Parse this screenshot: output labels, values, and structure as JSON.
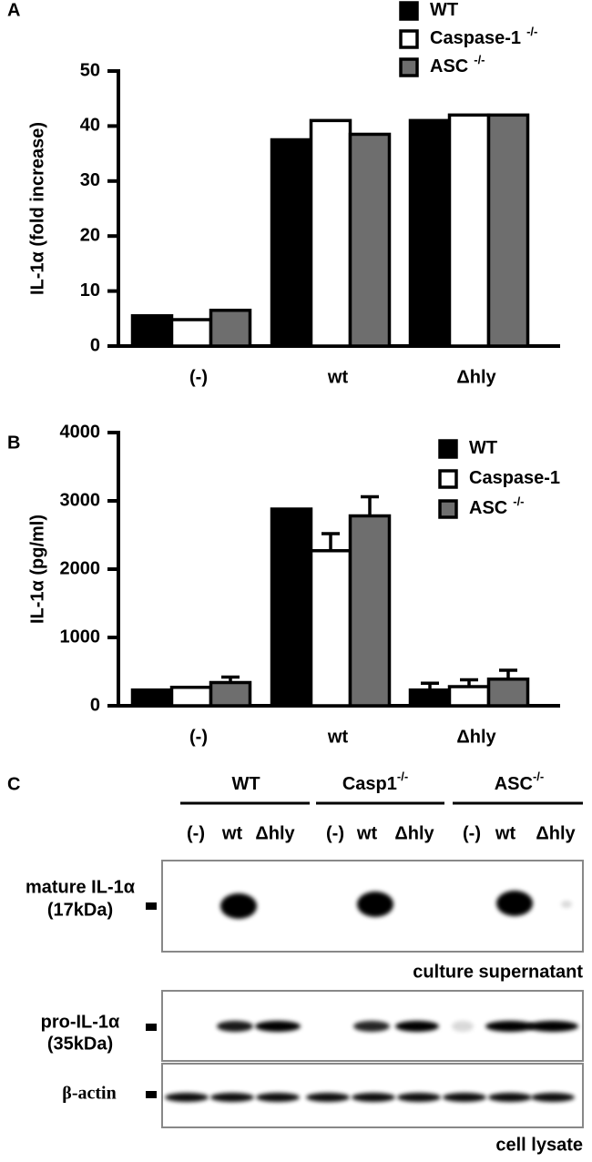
{
  "chart_data": [
    {
      "type": "bar",
      "panel": "A",
      "ylabel": "IL-1α  (fold increase)",
      "categories": [
        "(-)",
        "wt",
        "Δhly"
      ],
      "series": [
        {
          "name": "WT",
          "superscript": "",
          "color": "#000000",
          "values": [
            5.5,
            37.5,
            41
          ]
        },
        {
          "name": "Caspase-1",
          "superscript": "-/-",
          "color": "#ffffff",
          "values": [
            4.8,
            41,
            42
          ]
        },
        {
          "name": "ASC",
          "superscript": "-/-",
          "color": "#6e6e6e",
          "values": [
            6.5,
            38.5,
            42
          ]
        }
      ],
      "ylim": [
        0,
        50
      ],
      "yticks": [
        0,
        10,
        20,
        30,
        40,
        50
      ]
    },
    {
      "type": "bar",
      "panel": "B",
      "ylabel": "IL-1α  (pg/ml)",
      "categories": [
        "(-)",
        "wt",
        "Δhly"
      ],
      "series": [
        {
          "name": "WT",
          "superscript": "",
          "color": "#000000",
          "values": [
            230,
            2880,
            230
          ],
          "errors": [
            0,
            0,
            100
          ]
        },
        {
          "name": "Caspase-1",
          "superscript": "",
          "color": "#ffffff",
          "values": [
            270,
            2270,
            280
          ],
          "errors": [
            0,
            250,
            100
          ]
        },
        {
          "name": "ASC",
          "superscript": "-/-",
          "color": "#6e6e6e",
          "values": [
            340,
            2780,
            390
          ],
          "errors": [
            80,
            280,
            130
          ]
        }
      ],
      "ylim": [
        0,
        4000
      ],
      "yticks": [
        0,
        1000,
        2000,
        3000,
        4000
      ]
    }
  ],
  "blot": {
    "panel": "C",
    "groups": [
      {
        "name": "WT",
        "superscript": ""
      },
      {
        "name": "Casp1",
        "superscript": "-/-"
      },
      {
        "name": "ASC",
        "superscript": "-/-"
      }
    ],
    "lanes": [
      "(-)",
      "wt",
      "Δhly"
    ],
    "rows": [
      {
        "label": "mature IL-1α",
        "size": "(17kDa)"
      },
      {
        "label": "pro-IL-1α",
        "size": "(35kDa)"
      },
      {
        "label": "β-actin"
      }
    ],
    "captions": [
      "culture supernatant",
      "cell lysate"
    ]
  }
}
